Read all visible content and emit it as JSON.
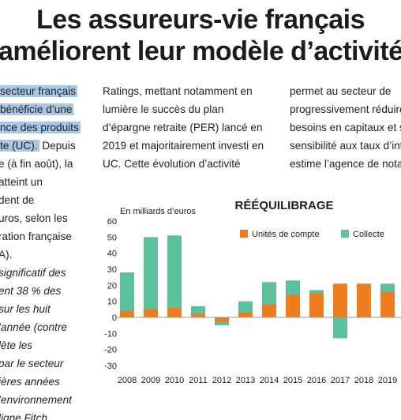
{
  "headline": {
    "line1": "Les assureurs-vie français",
    "line2": "améliorent leur modèle d’activité"
  },
  "article": {
    "col1": [
      {
        "text": "secteur français",
        "hl": true
      },
      {
        "text": "bénéficie d’une",
        "hl": true
      },
      {
        "text": "nce des produits",
        "hl": true
      },
      {
        "text": "te (UC).",
        "hl": true,
        "rest": " Depuis"
      },
      {
        "text": "e (à fin août), la"
      },
      {
        "text": "atteint un"
      },
      {
        "text": "dent de"
      },
      {
        "text": "uros, selon les"
      },
      {
        "text": "ration française"
      },
      {
        "text": "A)."
      },
      {
        "text": "significatif des",
        "it": true
      },
      {
        "text": "ent 38 % des",
        "it": true
      },
      {
        "text": "sur les huit",
        "it": true
      },
      {
        "text": "’année (contre",
        "it": true
      },
      {
        "text": "lète les",
        "it": true
      },
      {
        "text": "par le secteur",
        "it": true
      },
      {
        "text": "ières années",
        "it": true
      },
      {
        "text": "’environnement",
        "it": true
      },
      {
        "text": "ligne Fitch",
        "it": true,
        "partial": true
      }
    ],
    "col2": [
      "Ratings, mettant notamment en",
      "lumière le succès du plan",
      "d’épargne retraite (PER) lancé en",
      "2019 et majoritairement investi en",
      "UC. Cette évolution d’activité"
    ],
    "col3": [
      "permet au secteur de",
      "progressivement réduire",
      "besoins en capitaux et s",
      "sensibilité aux taux d’int",
      "estime l’agence de nota"
    ]
  },
  "chart_data": {
    "type": "bar",
    "stacked": true,
    "title": "RÉÉQUILIBRAGE",
    "ylabel": "En milliards d’euros",
    "xlabel": "",
    "categories": [
      "2008",
      "2009",
      "2010",
      "2011",
      "2012",
      "2013",
      "2014",
      "2015",
      "2016",
      "2017",
      "2018",
      "2019"
    ],
    "ylim": [
      -30,
      60
    ],
    "yticks": [
      60,
      50,
      40,
      30,
      20,
      10,
      0,
      -10,
      -20,
      -30
    ],
    "series": [
      {
        "name": "Unités de compte",
        "color": "#ef7d1f",
        "values": [
          4,
          5,
          6,
          2,
          -3,
          3,
          8,
          14,
          15,
          21,
          21,
          16
        ]
      },
      {
        "name": "Collecte",
        "color": "#5cc19a",
        "values": [
          28,
          50,
          51,
          7,
          -5,
          10,
          22,
          23,
          17,
          -13,
          20,
          21
        ]
      }
    ],
    "grid": false,
    "legend": "top"
  }
}
